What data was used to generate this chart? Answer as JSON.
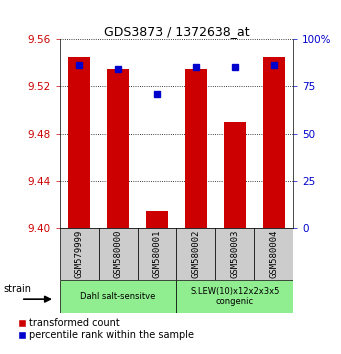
{
  "title": "GDS3873 / 1372638_at",
  "samples": [
    "GSM579999",
    "GSM580000",
    "GSM580001",
    "GSM580002",
    "GSM580003",
    "GSM580004"
  ],
  "red_values": [
    9.545,
    9.535,
    9.415,
    9.535,
    9.49,
    9.545
  ],
  "blue_values": [
    86,
    84,
    71,
    85,
    85,
    86
  ],
  "ylim_left": [
    9.4,
    9.56
  ],
  "ylim_right": [
    0,
    100
  ],
  "yticks_left": [
    9.4,
    9.44,
    9.48,
    9.52,
    9.56
  ],
  "yticks_right": [
    0,
    25,
    50,
    75,
    100
  ],
  "ylabel_left_color": "#cc0000",
  "ylabel_right_color": "#0000cc",
  "legend_red_label": "transformed count",
  "legend_blue_label": "percentile rank within the sample",
  "bar_color": "#cc0000",
  "dot_color": "#0000cc",
  "background_color": "#ffffff",
  "bar_width": 0.55,
  "group_box_color": "#cccccc",
  "group_info": [
    {
      "start": 0,
      "end": 2,
      "label": "Dahl salt-sensitve",
      "color": "#90ee90"
    },
    {
      "start": 3,
      "end": 5,
      "label": "S.LEW(10)x12x2x3x5\ncongenic",
      "color": "#90ee90"
    }
  ]
}
